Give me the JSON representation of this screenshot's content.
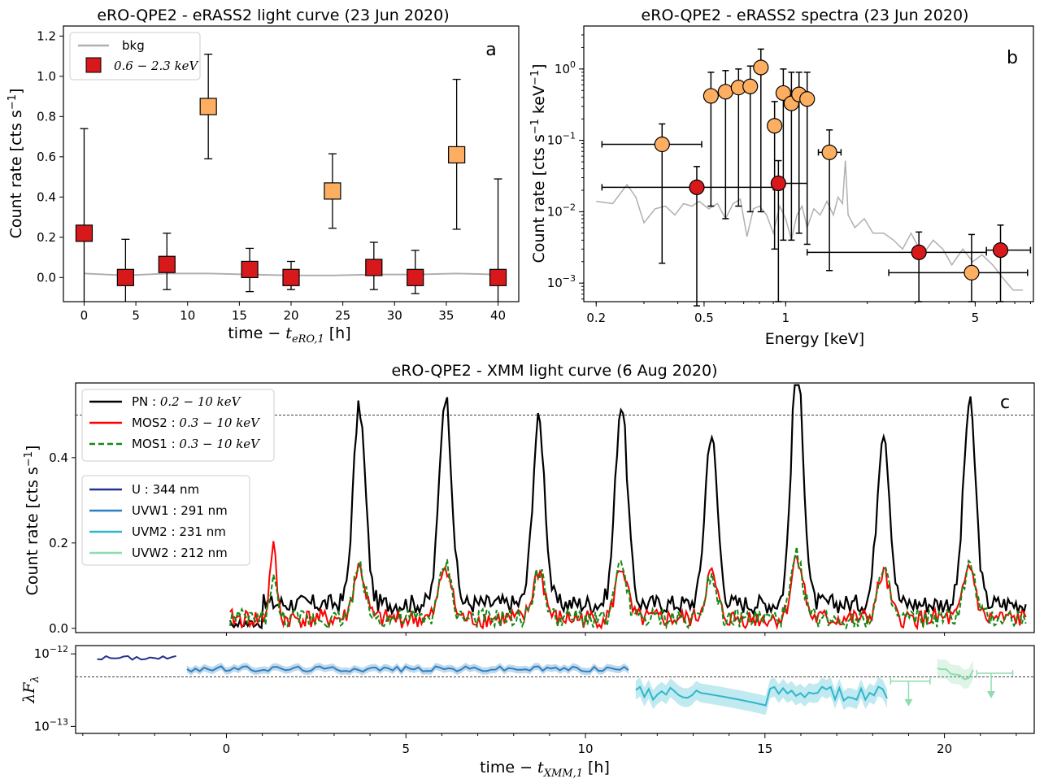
{
  "chart_data": [
    {
      "id": "a",
      "type": "scatter",
      "title": "eRO-QPE2 - eRASS2 light curve (23 Jun 2020)",
      "panel_label": "a",
      "xlabel_main": "time − ",
      "xlabel_sub_base": "t",
      "xlabel_sub": "eRO,1",
      "xlabel_unit": " [h]",
      "ylabel": "Count rate [cts s",
      "ylabel_sup": "−1",
      "ylabel_end": "]",
      "xlim": [
        -2,
        42
      ],
      "ylim": [
        -0.12,
        1.25
      ],
      "xticks": [
        0,
        5,
        10,
        15,
        20,
        25,
        30,
        35,
        40
      ],
      "yticks": [
        0.0,
        0.2,
        0.4,
        0.6,
        0.8,
        1.0,
        1.2
      ],
      "ytick_labels": [
        "0.0",
        "0.2",
        "0.4",
        "0.6",
        "0.8",
        "1.0",
        "1.2"
      ],
      "legend_position": "top-left",
      "legend": [
        {
          "label": "bkg",
          "kind": "line",
          "color": "#b0b0b0"
        },
        {
          "label": "0.6 − 2.3 keV",
          "kind": "square",
          "color": "#d7191c"
        }
      ],
      "bkg": {
        "name": "bkg",
        "color": "#b0b0b0",
        "x": [
          0,
          4,
          8,
          12,
          16,
          20,
          24,
          28,
          32,
          36,
          40
        ],
        "y": [
          0.02,
          0.01,
          0.02,
          0.02,
          0.015,
          0.01,
          0.01,
          0.015,
          0.015,
          0.02,
          0.015
        ]
      },
      "series": [
        {
          "name": "0.6 − 2.3 keV",
          "color": "#d7191c",
          "points": [
            {
              "x": 0,
              "y": 0.22,
              "lo": -0.12,
              "hi": 0.74
            },
            {
              "x": 4,
              "y": 0.0,
              "lo": -0.12,
              "hi": 0.19
            },
            {
              "x": 8,
              "y": 0.065,
              "lo": -0.06,
              "hi": 0.22
            },
            {
              "x": 16,
              "y": 0.04,
              "lo": -0.07,
              "hi": 0.145
            },
            {
              "x": 20,
              "y": 0.0,
              "lo": -0.06,
              "hi": 0.08
            },
            {
              "x": 28,
              "y": 0.05,
              "lo": -0.06,
              "hi": 0.175
            },
            {
              "x": 32,
              "y": 0.0,
              "lo": -0.08,
              "hi": 0.135
            },
            {
              "x": 40,
              "y": 0.0,
              "lo": -0.12,
              "hi": 0.49
            }
          ]
        },
        {
          "name": "",
          "color": "#fdae61",
          "points": [
            {
              "x": 12,
              "y": 0.85,
              "lo": 0.59,
              "hi": 1.11
            },
            {
              "x": 24,
              "y": 0.43,
              "lo": 0.245,
              "hi": 0.615
            },
            {
              "x": 36,
              "y": 0.61,
              "lo": 0.24,
              "hi": 0.985
            }
          ]
        }
      ]
    },
    {
      "id": "b",
      "type": "scatter",
      "title": "eRO-QPE2 - eRASS2 spectra (23 Jun 2020)",
      "panel_label": "b",
      "xlabel": "Energy [keV]",
      "ylabel": "Count rate [cts s",
      "ylabel_sup1": "−1",
      "ylabel_mid": " keV",
      "ylabel_sup2": "−1",
      "ylabel_end": "]",
      "xscale": "log",
      "yscale": "log",
      "xlim": [
        0.18,
        8.2
      ],
      "ylim": [
        0.00055,
        4.0
      ],
      "xticks": [
        0.2,
        0.5,
        1,
        5
      ],
      "xtick_labels": [
        "0.2",
        "0.5",
        "1",
        "5"
      ],
      "yticks": [
        0.001,
        0.01,
        0.1,
        1
      ],
      "ytick_exps": [
        "−3",
        "−2",
        "−1",
        "0"
      ],
      "bkg": {
        "color": "#b0b0b0",
        "x": [
          0.2,
          0.23,
          0.26,
          0.28,
          0.3,
          0.33,
          0.36,
          0.39,
          0.42,
          0.45,
          0.48,
          0.52,
          0.56,
          0.6,
          0.64,
          0.68,
          0.72,
          0.76,
          0.8,
          0.85,
          0.9,
          0.95,
          1.0,
          1.05,
          1.1,
          1.15,
          1.2,
          1.27,
          1.34,
          1.42,
          1.5,
          1.56,
          1.62,
          1.66,
          1.7,
          1.8,
          1.95,
          2.1,
          2.3,
          2.5,
          2.7,
          2.9,
          3.2,
          3.5,
          3.8,
          4.1,
          4.5,
          4.9,
          5.3,
          5.8,
          6.3,
          6.9,
          7.5
        ],
        "y": [
          0.014,
          0.013,
          0.024,
          0.016,
          0.007,
          0.011,
          0.012,
          0.009,
          0.013,
          0.012,
          0.014,
          0.011,
          0.013,
          0.008,
          0.013,
          0.015,
          0.0045,
          0.011,
          0.012,
          0.009,
          0.005,
          0.012,
          0.008,
          0.004,
          0.009,
          0.012,
          0.006,
          0.011,
          0.009,
          0.014,
          0.009,
          0.016,
          0.013,
          0.052,
          0.009,
          0.006,
          0.008,
          0.005,
          0.005,
          0.004,
          0.003,
          0.005,
          0.0025,
          0.004,
          0.003,
          0.0018,
          0.003,
          0.002,
          0.0025,
          0.0018,
          0.0012,
          0.0008,
          0.0008
        ]
      },
      "series": [
        {
          "name": "",
          "color": "#fdae61",
          "points": [
            {
              "x": 0.35,
              "y": 0.088,
              "xlo": 0.21,
              "xhi": 0.49,
              "ylo": 0.0019,
              "yhi": 0.17
            },
            {
              "x": 0.53,
              "y": 0.42,
              "xlo": 0.51,
              "xhi": 0.56,
              "ylo": 0.012,
              "yhi": 0.9
            },
            {
              "x": 0.6,
              "y": 0.48,
              "xlo": 0.57,
              "xhi": 0.63,
              "ylo": 0.008,
              "yhi": 0.95
            },
            {
              "x": 0.67,
              "y": 0.55,
              "xlo": 0.64,
              "xhi": 0.7,
              "ylo": 0.012,
              "yhi": 1.0
            },
            {
              "x": 0.74,
              "y": 0.57,
              "xlo": 0.71,
              "xhi": 0.78,
              "ylo": 0.01,
              "yhi": 1.1
            },
            {
              "x": 0.81,
              "y": 1.05,
              "xlo": 0.78,
              "xhi": 0.85,
              "ylo": 0.01,
              "yhi": 1.9
            },
            {
              "x": 0.91,
              "y": 0.16,
              "xlo": 0.88,
              "xhi": 0.94,
              "ylo": 0.003,
              "yhi": 0.35
            },
            {
              "x": 0.98,
              "y": 0.46,
              "xlo": 0.95,
              "xhi": 1.02,
              "ylo": 0.004,
              "yhi": 1.0
            },
            {
              "x": 1.05,
              "y": 0.33,
              "xlo": 1.02,
              "xhi": 1.09,
              "ylo": 0.004,
              "yhi": 0.9
            },
            {
              "x": 1.12,
              "y": 0.44,
              "xlo": 1.09,
              "xhi": 1.16,
              "ylo": 0.005,
              "yhi": 0.9
            },
            {
              "x": 1.2,
              "y": 0.38,
              "xlo": 1.16,
              "xhi": 1.24,
              "ylo": 0.0035,
              "yhi": 0.9
            },
            {
              "x": 1.45,
              "y": 0.068,
              "xlo": 1.32,
              "xhi": 1.6,
              "ylo": 0.0015,
              "yhi": 0.14
            },
            {
              "x": 4.85,
              "y": 0.0014,
              "xlo": 2.4,
              "xhi": 7.8,
              "ylo": 0.00055,
              "yhi": 0.0048
            }
          ]
        },
        {
          "name": "",
          "color": "#d7191c",
          "points": [
            {
              "x": 0.47,
              "y": 0.022,
              "xlo": 0.21,
              "xhi": 0.9,
              "ylo": 0.00048,
              "yhi": 0.043
            },
            {
              "x": 0.94,
              "y": 0.025,
              "xlo": 0.9,
              "xhi": 1.2,
              "ylo": 0.00055,
              "yhi": 0.052
            },
            {
              "x": 3.1,
              "y": 0.0027,
              "xlo": 1.2,
              "xhi": 5.5,
              "ylo": 0.00055,
              "yhi": 0.0052
            },
            {
              "x": 6.2,
              "y": 0.0029,
              "xlo": 5.5,
              "xhi": 8.0,
              "ylo": 0.00055,
              "yhi": 0.0065
            }
          ]
        }
      ]
    },
    {
      "id": "c",
      "type": "line",
      "title": "eRO-QPE2 - XMM light curve (6 Aug 2020)",
      "panel_label": "c",
      "ylabel": "Count rate [cts s",
      "ylabel_sup": "−1",
      "ylabel_end": "]",
      "xlim": [
        -4.2,
        22.5
      ],
      "ylim": [
        -0.01,
        0.575
      ],
      "yticks": [
        0.0,
        0.2,
        0.4
      ],
      "ytick_labels": [
        "0.0",
        "0.2",
        "0.4"
      ],
      "ref_line_y": 0.5,
      "data_start": 0.1,
      "data_end": 22.3,
      "flare_times": [
        3.7,
        6.1,
        8.7,
        11.0,
        13.5,
        15.9,
        18.3,
        20.7
      ],
      "flare_peaks": [
        0.46,
        0.49,
        0.43,
        0.47,
        0.4,
        0.57,
        0.41,
        0.47
      ],
      "small_flare": {
        "x": 1.3,
        "pn": 0.0,
        "mos2": 0.17,
        "mos1": 0.1
      },
      "legend_x": [
        {
          "label": "PN",
          "range": "0.2 − 10 keV",
          "color": "#000000",
          "dash": ""
        },
        {
          "label": "MOS2",
          "range": "0.3 − 10 keV",
          "color": "#ff0000",
          "dash": ""
        },
        {
          "label": "MOS1",
          "range": "0.3 − 10 keV",
          "color": "#138a13",
          "dash": "7,4"
        }
      ],
      "legend_uv": [
        {
          "label": "U : 344 nm",
          "color": "#25318f"
        },
        {
          "label": "UVW1 : 291 nm",
          "color": "#2c7fc0"
        },
        {
          "label": "UVM2 : 231 nm",
          "color": "#2fb6cc"
        },
        {
          "label": "UVW2 : 212 nm",
          "color": "#8fdcb0"
        }
      ]
    },
    {
      "id": "c2",
      "type": "line",
      "ylabel": "λF",
      "ylabel_sub": "λ",
      "xlabel_main": "time − ",
      "xlabel_sub_base": "t",
      "xlabel_sub": "XMM,1",
      "xlabel_unit": " [h]",
      "yscale": "log",
      "xlim": [
        -4.2,
        22.5
      ],
      "ylim": [
        8e-14,
        1.3e-12
      ],
      "xticks": [
        0,
        5,
        10,
        15,
        20
      ],
      "yticks": [
        1e-13,
        1e-12
      ],
      "ytick_exps": [
        "−13",
        "−12"
      ],
      "ref_line_y": 4.8e-13,
      "filters": [
        {
          "name": "U : 344 nm",
          "color": "#25318f",
          "x0": -3.6,
          "x1": -1.4,
          "level": 8.8e-13,
          "amp": 0.07,
          "band": 0.0
        },
        {
          "name": "UVW1 : 291 nm",
          "color": "#2c7fc0",
          "x0": -1.1,
          "x1": 11.2,
          "level": 6.2e-13,
          "amp": 0.09,
          "band": 0.12
        },
        {
          "name": "UVM2 : 231 nm",
          "color": "#2fb6cc",
          "x0": 11.4,
          "x1": 18.4,
          "level": 2.9e-13,
          "amp": 0.22,
          "band": 0.35
        },
        {
          "name": "UVW2 : 212 nm",
          "color": "#8fdcb0",
          "x0": 19.8,
          "x1": 20.8,
          "level": 5.4e-13,
          "amp": 0.18,
          "band": 0.35
        }
      ],
      "upper_limits": [
        {
          "x": 19.0,
          "y": 4.2e-13,
          "xlo": 18.5,
          "xhi": 19.6
        },
        {
          "x": 21.3,
          "y": 5.4e-13,
          "xlo": 20.9,
          "xhi": 21.9
        }
      ]
    }
  ]
}
